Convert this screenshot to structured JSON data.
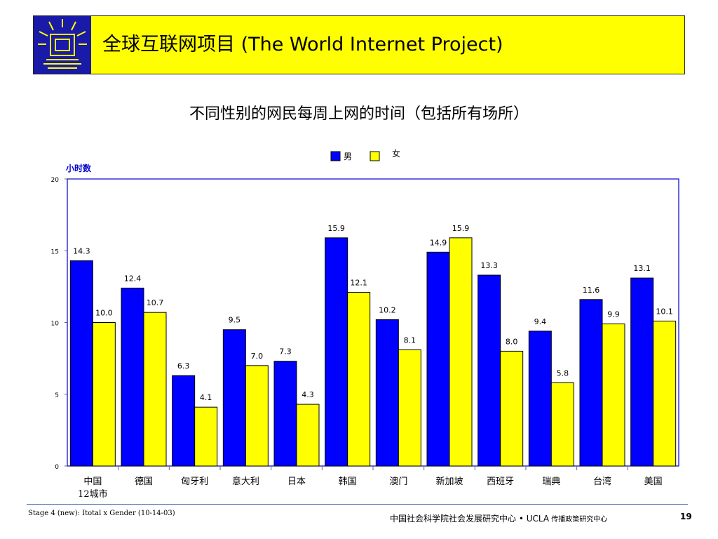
{
  "header": {
    "title": "全球互联网项目 (The World Internet Project)",
    "brand_color": "#ffff00",
    "logo_color": "#1a1aa8"
  },
  "chart_title": "不同性别的网民每周上网的时间（包括所有场所）",
  "footer": {
    "left": "Stage 4 (new): Itotal x Gender (10-14-03)",
    "center_part1": "中国社会科学院社会发展研究中心 • ",
    "center_ucla": "UCLA",
    "center_part2": " 传播政策研究中心",
    "page": "19"
  },
  "chart_data": {
    "type": "bar",
    "title": "不同性别的网民每周上网的时间（包括所有场所）",
    "ylabel": "小时数",
    "xlabel": "",
    "ylim": [
      0,
      20
    ],
    "yticks": [
      "0",
      "5",
      "10",
      "15",
      "20"
    ],
    "legend_placement": "top-center",
    "categories": [
      "中国",
      "德国",
      "匈牙利",
      "意大利",
      "日本",
      "韩国",
      "澳门",
      "新加坡",
      "西班牙",
      "瑞典",
      "台湾",
      "美国"
    ],
    "category_sublabels": [
      "12城市",
      "",
      "",
      "",
      "",
      "",
      "",
      "",
      "",
      "",
      "",
      ""
    ],
    "series": [
      {
        "name": "男",
        "color": "#0000ff",
        "values": [
          14.3,
          12.4,
          6.3,
          9.5,
          7.3,
          15.9,
          10.2,
          14.9,
          13.3,
          9.4,
          11.6,
          13.1
        ],
        "labels": [
          "14.3",
          "12.4",
          "6.3",
          "9.5",
          "7.3",
          "15.9",
          "10.2",
          "14.9",
          "13.3",
          "9.4",
          "11.6",
          "13.1"
        ]
      },
      {
        "name": "女",
        "color": "#ffff00",
        "values": [
          10.0,
          10.7,
          4.1,
          7.0,
          4.3,
          12.1,
          8.1,
          15.9,
          8.0,
          5.8,
          9.9,
          10.1
        ],
        "labels": [
          "10.0",
          "10.7",
          "4.1",
          "7.0",
          "4.3",
          "12.1",
          "8.1",
          "15.9",
          "8.0",
          "5.8",
          "9.9",
          "10.1"
        ]
      }
    ],
    "grid": false,
    "axis_label_color": "#0000cc",
    "plot_border_color": "#0000cc"
  }
}
